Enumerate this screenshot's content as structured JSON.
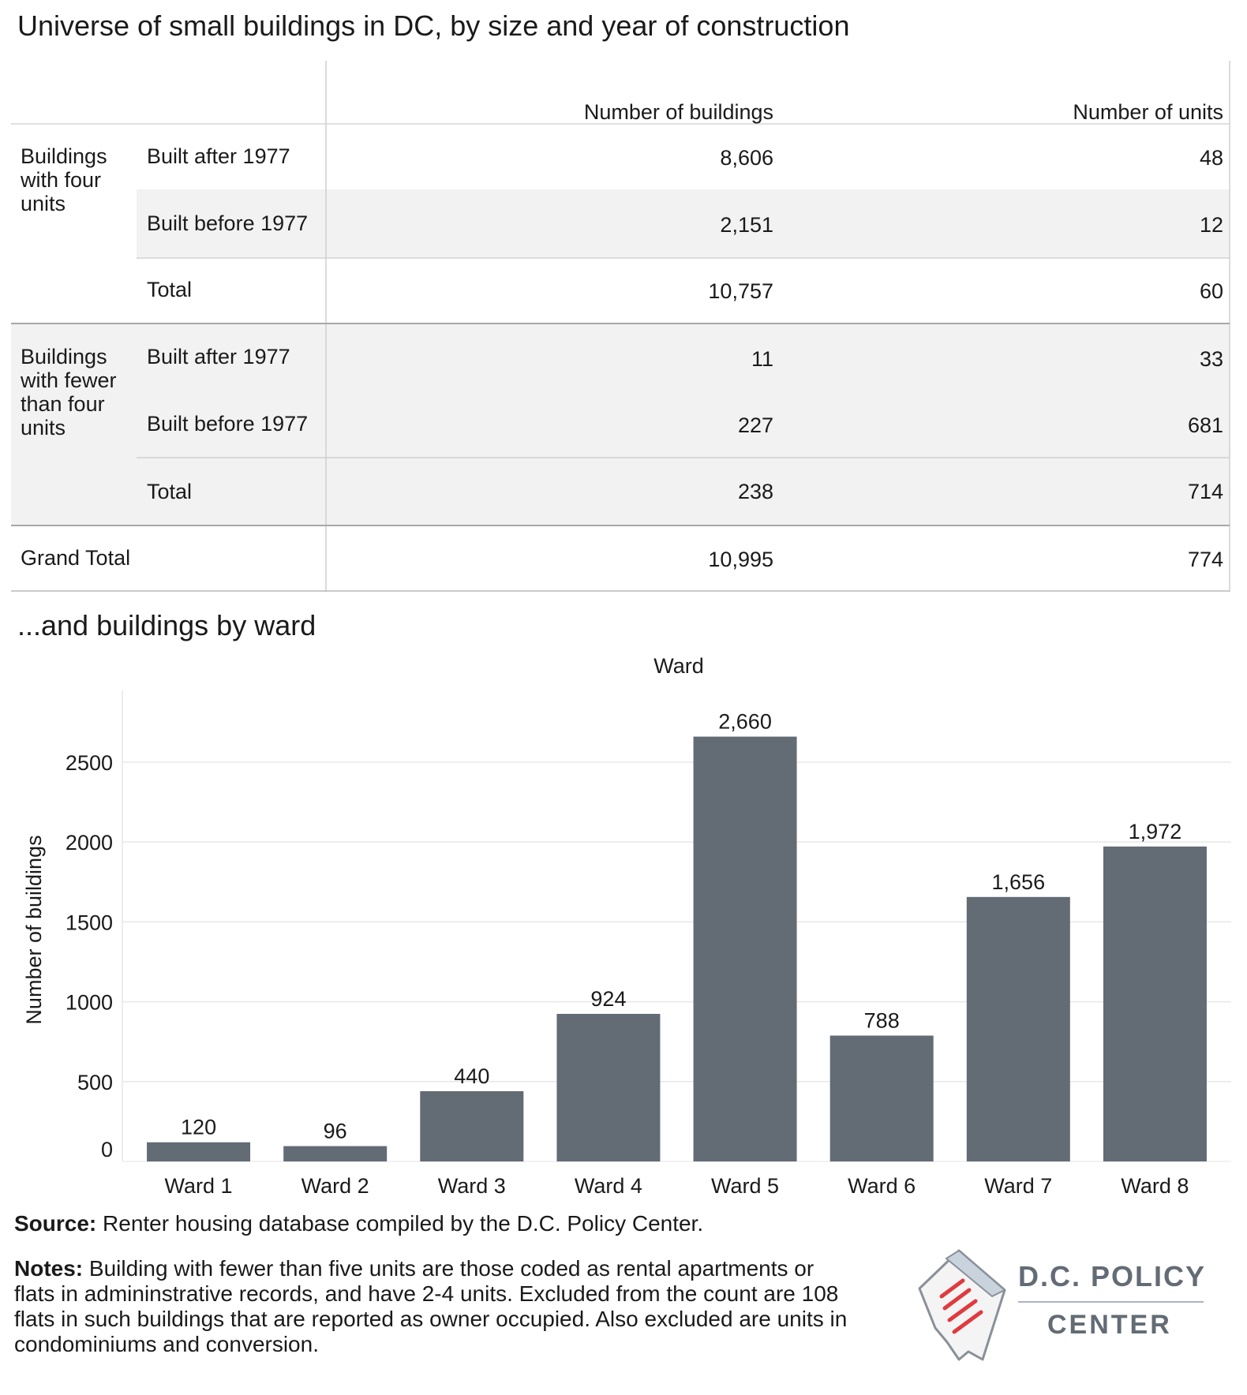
{
  "title": "Universe of small buildings in DC, by size and year of construction",
  "table": {
    "headers": [
      "Number of buildings",
      "Number of units"
    ],
    "groups": [
      {
        "label": "Buildings with four units",
        "rows": [
          {
            "label": "Built after 1977",
            "buildings": "8,606",
            "units": "48"
          },
          {
            "label": "Built before 1977",
            "buildings": "2,151",
            "units": "12"
          },
          {
            "label": "Total",
            "buildings": "10,757",
            "units": "60"
          }
        ]
      },
      {
        "label": "Buildings with fewer than four units",
        "rows": [
          {
            "label": "Built after 1977",
            "buildings": "11",
            "units": "33"
          },
          {
            "label": "Built before 1977",
            "buildings": "227",
            "units": "681"
          },
          {
            "label": "Total",
            "buildings": "238",
            "units": "714"
          }
        ]
      }
    ],
    "grand_total": {
      "label": "Grand Total",
      "buildings": "10,995",
      "units": "774"
    }
  },
  "subtitle": "...and buildings by ward",
  "chart_data": {
    "type": "bar",
    "title": "Ward",
    "categories": [
      "Ward 1",
      "Ward 2",
      "Ward 3",
      "Ward 4",
      "Ward 5",
      "Ward 6",
      "Ward 7",
      "Ward 8"
    ],
    "values": [
      120,
      96,
      440,
      924,
      2660,
      788,
      1656,
      1972
    ],
    "data_labels": [
      "120",
      "96",
      "440",
      "924",
      "2,660",
      "788",
      "1,656",
      "1,972"
    ],
    "ylabel": "Number of buildings",
    "xlabel": "",
    "ylim": [
      0,
      2900
    ],
    "yticks": [
      0,
      500,
      1000,
      1500,
      2000,
      2500
    ],
    "grid": true,
    "bar_color": "#636b75"
  },
  "footer": {
    "source_label": "Source:",
    "source_text": "Renter housing database compiled by the D.C. Policy Center.",
    "notes_label": "Notes:",
    "notes_text": "Building with fewer than five units are those coded as rental apartments or flats in admininstrative records, and have 2-4 units. Excluded from the count are 108 flats in such buildings that are reported as owner occupied. Also excluded are units in condominiums and conversion."
  },
  "logo": {
    "line1": "D.C. POLICY",
    "line2": "CENTER",
    "accent": "#e03a3e"
  }
}
